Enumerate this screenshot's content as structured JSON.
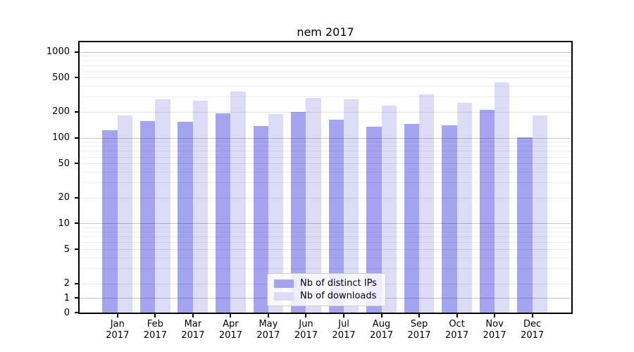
{
  "title": "nem 2017",
  "chart_data": {
    "type": "bar",
    "title": "nem 2017",
    "xlabel": "",
    "ylabel": "",
    "yscale": "symlog",
    "grid": true,
    "legend_position": "lower center",
    "year_label": "2017",
    "categories": [
      "Jan",
      "Feb",
      "Mar",
      "Apr",
      "May",
      "Jun",
      "Jul",
      "Aug",
      "Sep",
      "Oct",
      "Nov",
      "Dec"
    ],
    "series": [
      {
        "name": "Nb of distinct IPs",
        "color": "#a4a4f1",
        "values": [
          122,
          156,
          153,
          192,
          136,
          200,
          162,
          134,
          145,
          140,
          212,
          102
        ]
      },
      {
        "name": "Nb of downloads",
        "color": "#dcdcf7",
        "values": [
          181,
          281,
          270,
          345,
          190,
          290,
          281,
          237,
          318,
          255,
          444,
          182
        ]
      }
    ],
    "yticks": [
      0,
      1,
      2,
      5,
      10,
      20,
      50,
      100,
      200,
      500,
      1000
    ],
    "ytick_labels": [
      "0",
      "1",
      "2",
      "5",
      "10",
      "20",
      "50",
      "100",
      "200",
      "500",
      "1000"
    ],
    "yticks_minor": [
      3,
      4,
      6,
      7,
      8,
      9,
      30,
      40,
      60,
      70,
      80,
      90,
      300,
      400,
      600,
      700,
      800,
      900
    ],
    "ylim": [
      0,
      1420
    ]
  },
  "colors": {
    "series_ips": "#a4a4f1",
    "series_downloads": "#dcdcf7",
    "grid_major": "rgba(0,0,0,0.22)",
    "grid_mid": "rgba(0,0,0,0.10)",
    "grid_minor": "rgba(0,0,0,0.07)",
    "axis": "#000000",
    "legend_border": "#cccccc"
  }
}
